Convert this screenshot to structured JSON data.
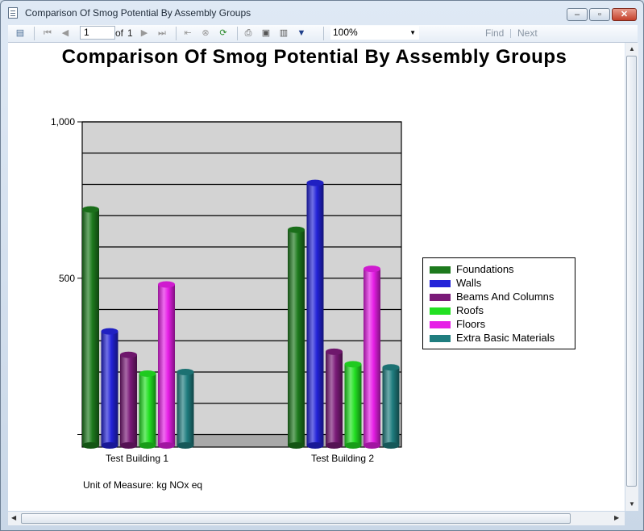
{
  "window": {
    "title": "Comparison Of Smog Potential By Assembly Groups"
  },
  "toolbar": {
    "page_current": "1",
    "page_of_label": "of",
    "page_total": "1",
    "zoom": "100%",
    "find_label": "Find",
    "next_label": "Next"
  },
  "report": {
    "title": "Comparison Of Smog Potential By Assembly Groups",
    "unit_label": "Unit of Measure: kg NOx eq"
  },
  "chart_data": {
    "type": "bar",
    "categories": [
      "Test Building 1",
      "Test Building 2"
    ],
    "series": [
      {
        "name": "Foundations",
        "color": "#1d7a1d",
        "values": [
          720,
          655
        ]
      },
      {
        "name": "Walls",
        "color": "#2323d8",
        "values": [
          330,
          805
        ]
      },
      {
        "name": "Beams And Columns",
        "color": "#7a1a78",
        "values": [
          255,
          265
        ]
      },
      {
        "name": "Roofs",
        "color": "#22e022",
        "values": [
          195,
          225
        ]
      },
      {
        "name": "Floors",
        "color": "#e61ee6",
        "values": [
          480,
          530
        ]
      },
      {
        "name": "Extra Basic Materials",
        "color": "#1f7d7f",
        "values": [
          200,
          215
        ]
      }
    ],
    "ylim": [
      -40,
      1000
    ],
    "yticks": [
      {
        "value": 1000,
        "label": "1,000"
      },
      {
        "value": 500,
        "label": "500"
      },
      {
        "value": 0,
        "label": ""
      }
    ],
    "grid": true,
    "legend_position": "right"
  }
}
